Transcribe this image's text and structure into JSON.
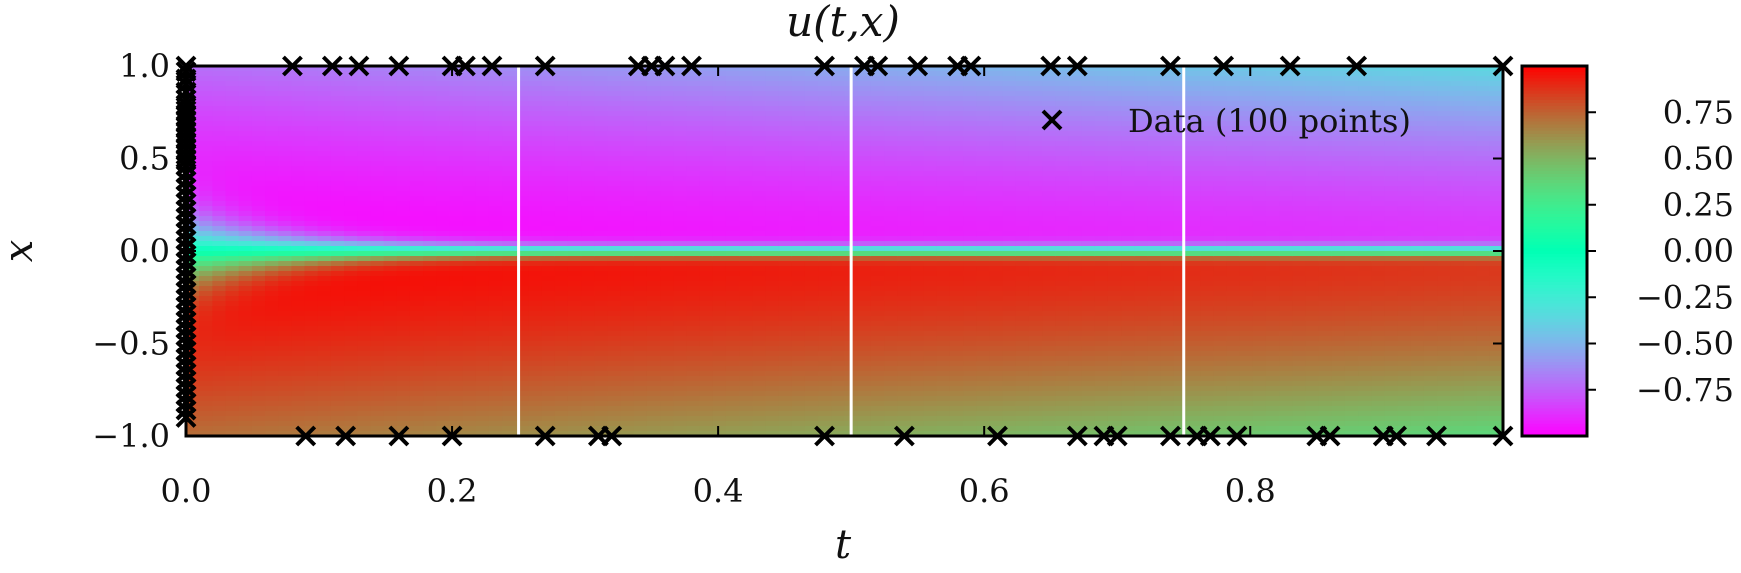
{
  "chart_data": {
    "type": "heatmap",
    "title": "u(t,x)",
    "xlabel": "t",
    "ylabel": "x",
    "xlim": [
      0,
      0.99
    ],
    "ylim": [
      -1.0,
      1.0
    ],
    "x_ticks": [
      "0.0",
      "0.2",
      "0.4",
      "0.6",
      "0.8"
    ],
    "x_tick_values": [
      0.0,
      0.2,
      0.4,
      0.6,
      0.8
    ],
    "y_ticks": [
      "−1.0",
      "−0.5",
      "0.0",
      "0.5",
      "1.0"
    ],
    "y_tick_values": [
      -1.0,
      -0.5,
      0.0,
      0.5,
      1.0
    ],
    "colorbar": {
      "range": [
        -1.0,
        1.0
      ],
      "ticks": [
        "0.75",
        "0.50",
        "0.25",
        "0.00",
        "−0.25",
        "−0.50",
        "−0.75"
      ],
      "tick_values": [
        0.75,
        0.5,
        0.25,
        0.0,
        -0.25,
        -0.5,
        -0.75
      ],
      "colormap": "rainbow"
    },
    "snapshot_lines": [
      0.25,
      0.5,
      0.75
    ],
    "snapshot_line_color": "#ffffff",
    "grid": false,
    "legend": {
      "label": "Data (100 points)",
      "marker": "x",
      "placement": "top-right"
    },
    "data_points": {
      "top_boundary_t": [
        0.0,
        0.08,
        0.11,
        0.13,
        0.16,
        0.2,
        0.21,
        0.23,
        0.27,
        0.34,
        0.35,
        0.36,
        0.38,
        0.48,
        0.51,
        0.52,
        0.55,
        0.58,
        0.59,
        0.65,
        0.67,
        0.74,
        0.78,
        0.83,
        0.88,
        0.99
      ],
      "bottom_boundary_t": [
        0.09,
        0.12,
        0.16,
        0.2,
        0.27,
        0.31,
        0.32,
        0.48,
        0.54,
        0.61,
        0.67,
        0.69,
        0.7,
        0.74,
        0.76,
        0.77,
        0.79,
        0.85,
        0.86,
        0.9,
        0.91,
        0.94,
        0.99
      ],
      "initial_x": [
        0.97,
        0.93,
        0.9,
        0.86,
        0.82,
        0.79,
        0.76,
        0.73,
        0.7,
        0.67,
        0.64,
        0.61,
        0.58,
        0.55,
        0.52,
        0.49,
        0.46,
        0.42,
        0.38,
        0.34,
        0.3,
        0.26,
        0.22,
        0.18,
        0.14,
        0.1,
        0.06,
        0.02,
        -0.02,
        -0.06,
        -0.1,
        -0.14,
        -0.18,
        -0.22,
        -0.26,
        -0.3,
        -0.34,
        -0.38,
        -0.42,
        -0.46,
        -0.5,
        -0.54,
        -0.58,
        -0.62,
        -0.66,
        -0.7,
        -0.74,
        -0.78,
        -0.82,
        -0.86,
        -0.9
      ]
    }
  }
}
